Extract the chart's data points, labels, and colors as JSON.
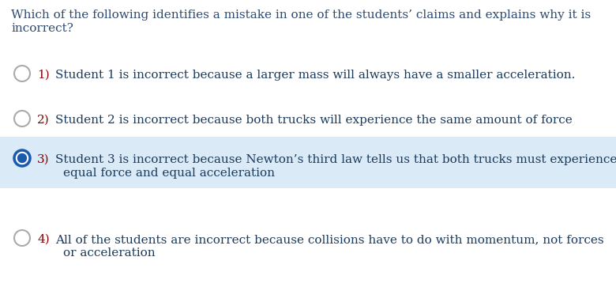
{
  "question_line1": "Which of the following identifies a mistake in one of the students’ claims and explains why it is",
  "question_line2": "incorrect?",
  "options": [
    {
      "number": "1)",
      "selected": false,
      "lines": [
        "Student 1 is incorrect because a larger mass will always have a smaller acceleration."
      ]
    },
    {
      "number": "2)",
      "selected": false,
      "lines": [
        "Student 2 is incorrect because both trucks will experience the same amount of force"
      ]
    },
    {
      "number": "3)",
      "selected": true,
      "lines": [
        "Student 3 is incorrect because Newton’s third law tells us that both trucks must experience",
        "equal force and equal acceleration"
      ]
    },
    {
      "number": "4)",
      "selected": false,
      "lines": [
        "All of the students are incorrect because collisions have to do with momentum, not forces",
        "or acceleration"
      ]
    }
  ],
  "bg_color": "#ffffff",
  "selected_bg_color": "#dbeaf7",
  "question_color": "#2e4a6e",
  "option_number_color": "#8B0000",
  "option_text_color": "#1a3a5c",
  "circle_edge_unsel": "#aaaaaa",
  "selected_circle_edge": "#1a5aaa",
  "selected_circle_fill": "#1a5aaa",
  "font_size": 11.0
}
